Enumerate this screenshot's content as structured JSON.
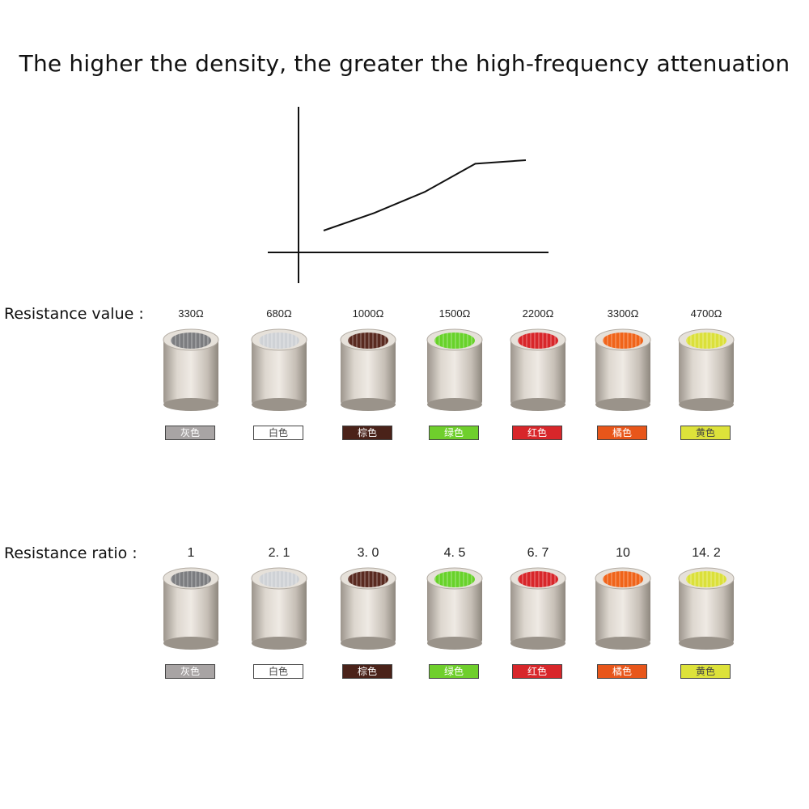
{
  "headline": "The higher the density, the greater the high-frequency attenuation",
  "resistance_value_label": "Resistance value :",
  "resistance_ratio_label": "Resistance ratio :",
  "curve_values": [
    0.0,
    0.25,
    0.55,
    0.95,
    1.0
  ],
  "beads": [
    {
      "value": "330Ω",
      "ratio": "1",
      "color_name": "灰色",
      "fill": "#7c7d80",
      "chip_bg": "#a8a4a4",
      "chip_fg": "#ffffff"
    },
    {
      "value": "680Ω",
      "ratio": "2. 1",
      "color_name": "白色",
      "fill": "#cfd2d6",
      "chip_bg": "#ffffff",
      "chip_fg": "#444444"
    },
    {
      "value": "1000Ω",
      "ratio": "3. 0",
      "color_name": "棕色",
      "fill": "#5a2a20",
      "chip_bg": "#4a2219",
      "chip_fg": "#ffffff"
    },
    {
      "value": "1500Ω",
      "ratio": "4. 5",
      "color_name": "绿色",
      "fill": "#68d22a",
      "chip_bg": "#6fcf2c",
      "chip_fg": "#ffffff"
    },
    {
      "value": "2200Ω",
      "ratio": "6. 7",
      "color_name": "红色",
      "fill": "#d8262a",
      "chip_bg": "#d8262a",
      "chip_fg": "#ffffff"
    },
    {
      "value": "3300Ω",
      "ratio": "10",
      "color_name": "橘色",
      "fill": "#f0641a",
      "chip_bg": "#e8561a",
      "chip_fg": "#ffffff"
    },
    {
      "value": "4700Ω",
      "ratio": "14. 2",
      "color_name": "黄色",
      "fill": "#dbe03a",
      "chip_bg": "#dde23a",
      "chip_fg": "#444444"
    }
  ]
}
